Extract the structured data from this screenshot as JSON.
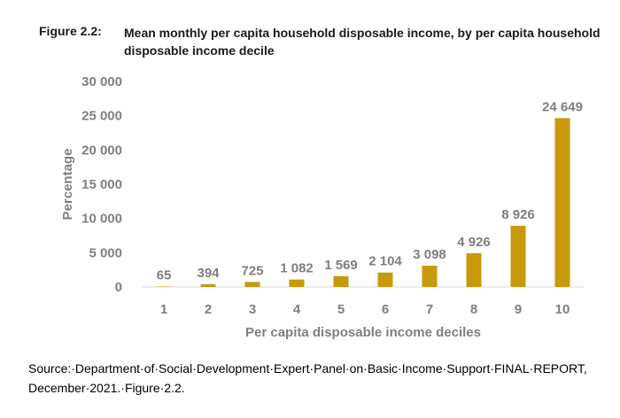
{
  "figure": {
    "label": "Figure 2.2:",
    "title": "Mean monthly per capita household disposable income, by per capita household disposable income decile"
  },
  "source": "Source:·Department·of·Social·Development·Expert·Panel·on·Basic·Income·Support·FINAL·REPORT, December·2021.·Figure·2.2.",
  "chart_data": {
    "type": "bar",
    "title": "",
    "xlabel": "Per capita disposable income deciles",
    "ylabel": "Percentage",
    "categories": [
      "1",
      "2",
      "3",
      "4",
      "5",
      "6",
      "7",
      "8",
      "9",
      "10"
    ],
    "values": [
      65,
      394,
      725,
      1082,
      1569,
      2104,
      3098,
      4926,
      8926,
      24649
    ],
    "data_labels": [
      "65",
      "394",
      "725",
      "1 082",
      "1 569",
      "2 104",
      "3 098",
      "4 926",
      "8 926",
      "24 649"
    ],
    "y_ticks": [
      0,
      5000,
      10000,
      15000,
      20000,
      25000,
      30000
    ],
    "y_tick_labels": [
      "0",
      "5 000",
      "10 000",
      "15 000",
      "20 000",
      "25 000",
      "30 000"
    ],
    "ylim": [
      0,
      30000
    ],
    "grid": false,
    "legend": "none",
    "colors": {
      "bar": "#C89A0A",
      "text": "#7F7F7F",
      "axis": "#D9D9D9"
    }
  }
}
